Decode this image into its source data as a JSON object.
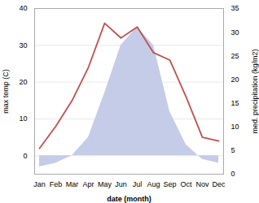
{
  "chart_data": {
    "type": "line",
    "categories": [
      "Jan",
      "Feb",
      "Mar",
      "Apr",
      "May",
      "Jun",
      "Jul",
      "Aug",
      "Sep",
      "Oct",
      "Nov",
      "Dec"
    ],
    "series": [
      {
        "type": "area",
        "color": "#c5cce8",
        "values": [
          -3,
          -2,
          0,
          5,
          17,
          30,
          35,
          30,
          12,
          3,
          -1,
          -2
        ]
      },
      {
        "type": "line",
        "color": "#c0504d",
        "values": [
          2,
          8,
          15,
          24,
          36,
          32,
          35,
          28,
          26,
          16,
          5,
          4
        ]
      }
    ],
    "xlabel": "date (month)",
    "ylabel": "max temp (C)",
    "y2label": "med. precipitation (kg/m2)",
    "ylim": [
      -5,
      40
    ],
    "yticks": [
      0,
      10,
      20,
      30,
      40
    ],
    "y2lim": [
      0,
      35
    ],
    "y2ticks": [
      0,
      5,
      10,
      15,
      20,
      25,
      30,
      35
    ],
    "grid": true
  }
}
